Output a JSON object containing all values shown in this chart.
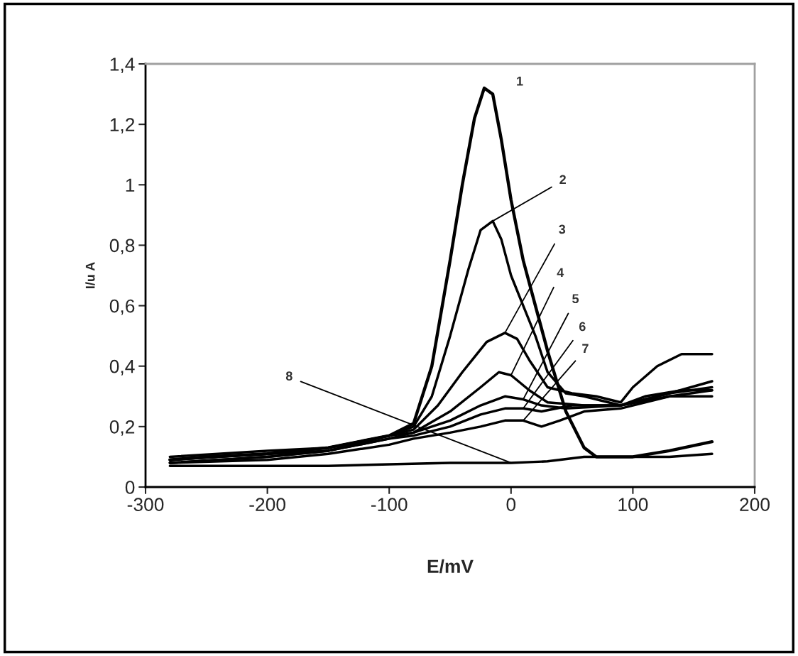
{
  "chart_data": {
    "type": "line",
    "xlabel": "E/mV",
    "ylabel": "I/u A",
    "xlim": [
      -300,
      200
    ],
    "xticks": [
      -300,
      -200,
      -100,
      0,
      100,
      200
    ],
    "ylim": [
      0,
      1.4
    ],
    "yticks": [
      0,
      {
        "value": 0.2,
        "label": "0,2"
      },
      {
        "value": 0.4,
        "label": "0,4"
      },
      {
        "value": 0.6,
        "label": "0,6"
      },
      {
        "value": 0.8,
        "label": "0,8"
      },
      1,
      {
        "value": 1.2,
        "label": "1,2"
      },
      {
        "value": 1.4,
        "label": "1,4"
      }
    ],
    "grid": false,
    "legend": false,
    "marker": "none",
    "line_style": "solid",
    "series": [
      {
        "color": "#000000",
        "x": [
          -280,
          -250,
          -200,
          -150,
          -100,
          -80,
          -65,
          -50,
          -40,
          -30,
          -22,
          -15,
          -8,
          0,
          10,
          20,
          30,
          45,
          60,
          70,
          100,
          130,
          165
        ],
        "values": [
          0.09,
          0.1,
          0.11,
          0.13,
          0.17,
          0.21,
          0.4,
          0.75,
          1.0,
          1.22,
          1.32,
          1.3,
          1.15,
          0.95,
          0.75,
          0.6,
          0.45,
          0.25,
          0.13,
          0.1,
          0.1,
          0.12,
          0.15
        ]
      },
      {
        "color": "#000000",
        "x": [
          -280,
          -200,
          -150,
          -100,
          -80,
          -65,
          -50,
          -35,
          -25,
          -15,
          -8,
          0,
          10,
          20,
          30,
          45,
          60,
          90,
          110,
          140,
          165
        ],
        "values": [
          0.08,
          0.1,
          0.12,
          0.17,
          0.2,
          0.3,
          0.5,
          0.72,
          0.85,
          0.88,
          0.82,
          0.7,
          0.6,
          0.5,
          0.38,
          0.31,
          0.3,
          0.27,
          0.3,
          0.32,
          0.32
        ]
      },
      {
        "color": "#000000",
        "x": [
          -280,
          -200,
          -150,
          -100,
          -80,
          -60,
          -40,
          -20,
          -5,
          5,
          15,
          30,
          50,
          70,
          90,
          100,
          120,
          140,
          165
        ],
        "values": [
          0.09,
          0.11,
          0.13,
          0.17,
          0.19,
          0.27,
          0.38,
          0.48,
          0.51,
          0.49,
          0.42,
          0.33,
          0.31,
          0.3,
          0.28,
          0.33,
          0.4,
          0.44,
          0.44
        ]
      },
      {
        "color": "#000000",
        "x": [
          -280,
          -200,
          -150,
          -100,
          -80,
          -50,
          -25,
          -10,
          0,
          15,
          30,
          60,
          90,
          130,
          165
        ],
        "values": [
          0.1,
          0.12,
          0.13,
          0.17,
          0.18,
          0.25,
          0.33,
          0.38,
          0.37,
          0.32,
          0.28,
          0.27,
          0.27,
          0.31,
          0.35
        ]
      },
      {
        "color": "#000000",
        "x": [
          -280,
          -200,
          -150,
          -100,
          -80,
          -50,
          -25,
          -5,
          10,
          25,
          45,
          90,
          130,
          165
        ],
        "values": [
          0.08,
          0.1,
          0.12,
          0.16,
          0.18,
          0.22,
          0.27,
          0.3,
          0.29,
          0.27,
          0.26,
          0.27,
          0.3,
          0.3
        ]
      },
      {
        "color": "#000000",
        "x": [
          -280,
          -200,
          -150,
          -100,
          -80,
          -50,
          -25,
          -5,
          10,
          25,
          50,
          90,
          130,
          165
        ],
        "values": [
          0.09,
          0.11,
          0.12,
          0.16,
          0.17,
          0.2,
          0.24,
          0.26,
          0.26,
          0.25,
          0.27,
          0.27,
          0.31,
          0.33
        ]
      },
      {
        "color": "#000000",
        "x": [
          -280,
          -200,
          -150,
          -100,
          -80,
          -50,
          -25,
          -5,
          10,
          25,
          40,
          60,
          90,
          130,
          165
        ],
        "values": [
          0.08,
          0.09,
          0.11,
          0.14,
          0.16,
          0.18,
          0.2,
          0.22,
          0.22,
          0.2,
          0.22,
          0.25,
          0.26,
          0.3,
          0.32
        ]
      },
      {
        "color": "#000000",
        "x": [
          -280,
          -200,
          -150,
          -100,
          -50,
          0,
          30,
          60,
          100,
          130,
          165
        ],
        "values": [
          0.07,
          0.07,
          0.07,
          0.075,
          0.08,
          0.08,
          0.085,
          0.1,
          0.1,
          0.1,
          0.11
        ]
      }
    ],
    "annotations": [
      {
        "text": "1",
        "x": -22,
        "y": 1.32
      },
      {
        "text": "2",
        "x": -15,
        "y": 0.88
      },
      {
        "text": "3",
        "x": -5,
        "y": 0.51
      },
      {
        "text": "4",
        "x": 0,
        "y": 0.37
      },
      {
        "text": "5",
        "x": 10,
        "y": 0.29
      },
      {
        "text": "6",
        "x": 10,
        "y": 0.26
      },
      {
        "text": "7",
        "x": 10,
        "y": 0.22
      },
      {
        "text": "8",
        "x": 0,
        "y": 0.08
      }
    ]
  }
}
